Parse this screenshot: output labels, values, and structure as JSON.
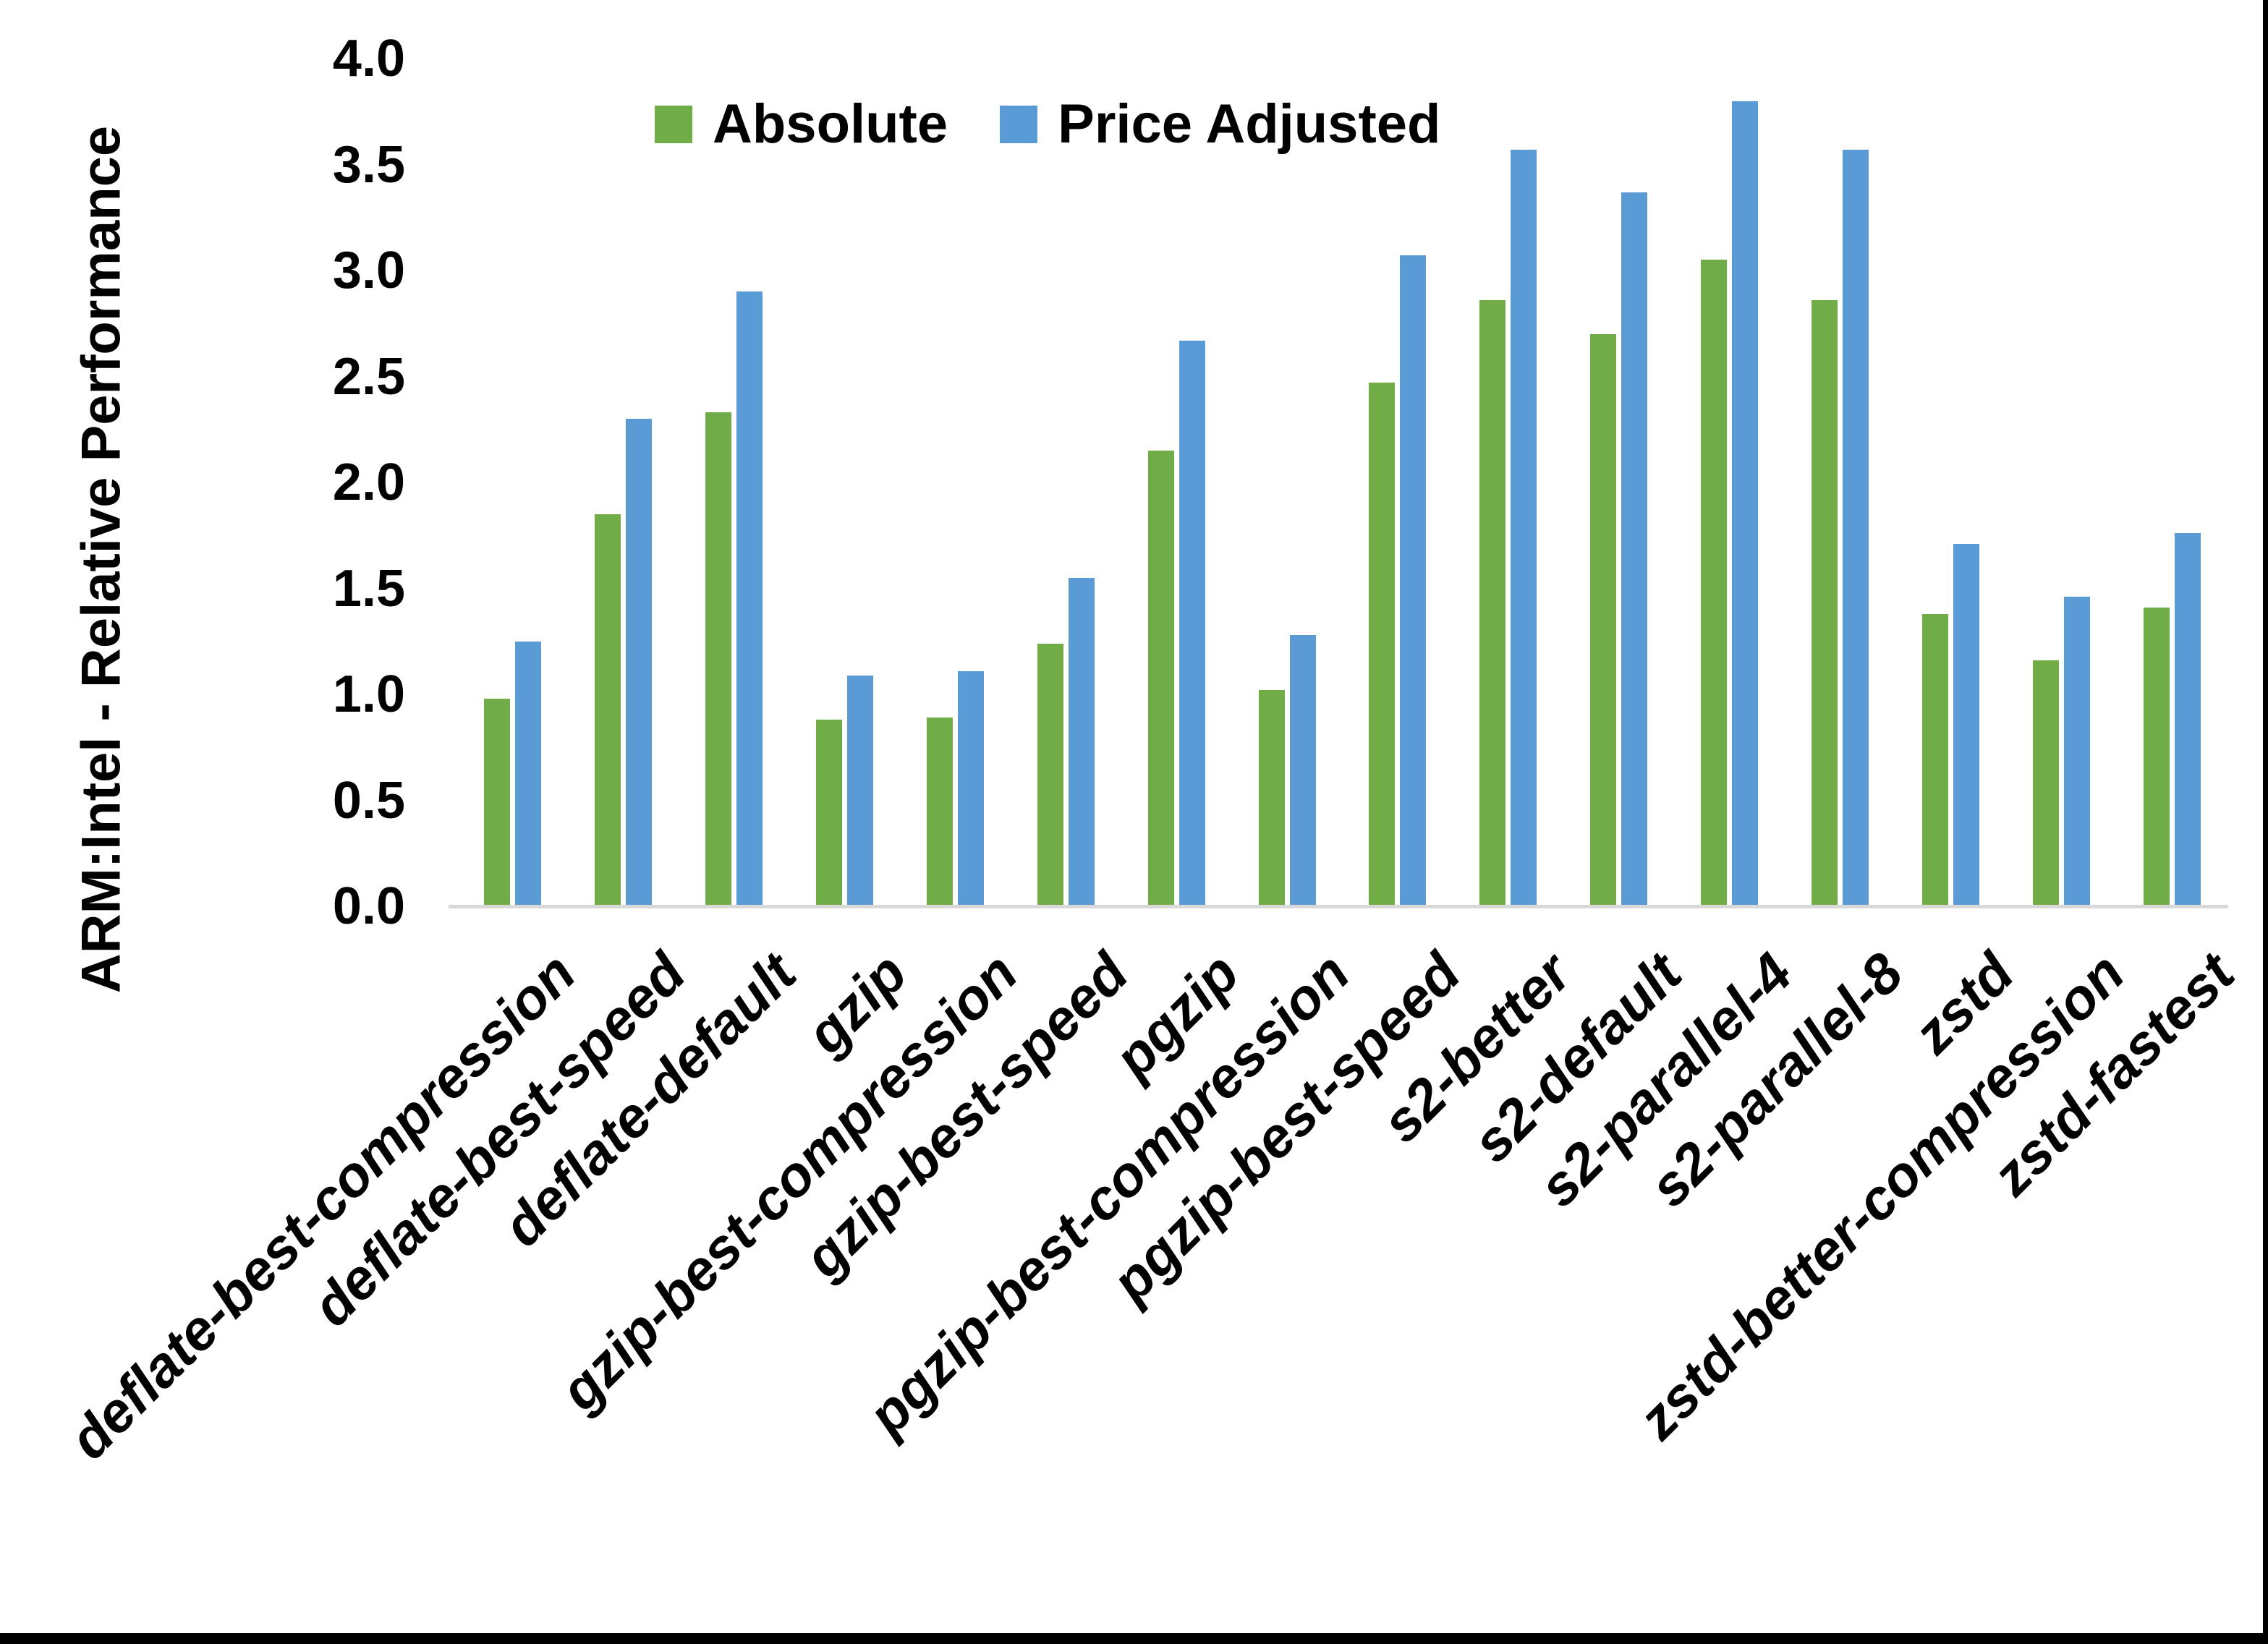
{
  "chart_data": {
    "type": "bar",
    "title": "",
    "ylabel": "ARM:Intel - Relative Performance",
    "xlabel": "",
    "categories": [
      "deflate-best-compression",
      "deflate-best-speed",
      "deflate-default",
      "gzip",
      "gzip-best-compression",
      "gzip-best-speed",
      "pgzip",
      "pgzip-best-compression",
      "pgzip-best-speed",
      "s2-better",
      "s2-default",
      "s2-parallel-4",
      "s2-parallel-8",
      "zstd",
      "zstd-better-compression",
      "zstd-fastest"
    ],
    "series": [
      {
        "name": "Absolute",
        "color": "#70AD47",
        "values": [
          0.98,
          1.85,
          2.33,
          0.88,
          0.89,
          1.24,
          2.15,
          1.02,
          2.47,
          2.86,
          2.7,
          3.05,
          2.86,
          1.38,
          1.16,
          1.41
        ]
      },
      {
        "name": "Price Adjusted",
        "color": "#5B9BD5",
        "values": [
          1.25,
          2.3,
          2.9,
          1.09,
          1.11,
          1.55,
          2.67,
          1.28,
          3.07,
          3.57,
          3.37,
          3.8,
          3.57,
          1.71,
          1.46,
          1.76
        ]
      }
    ],
    "ylim": [
      0.0,
      4.0
    ],
    "ytick_step": 0.5,
    "ytick_format_decimals": 1,
    "grid": false,
    "legend_position": "top-center",
    "axis_line_color": "#D9D9D9",
    "text_color": "#000000"
  }
}
